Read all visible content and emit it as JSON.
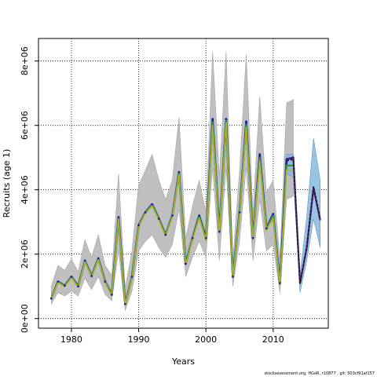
{
  "chart_data": {
    "type": "line",
    "title": "",
    "xlabel": "Years",
    "ylabel": "Recruits (age 1)",
    "xlim": [
      1975.1,
      2018.2
    ],
    "ylim": [
      -300000,
      8700000
    ],
    "x_ticks": [
      1980,
      1990,
      2000,
      2010
    ],
    "x_tick_labels": [
      "1980",
      "1990",
      "2000",
      "2010"
    ],
    "y_ticks": [
      0,
      2000000,
      4000000,
      6000000,
      8000000
    ],
    "y_tick_labels": [
      "0e+00",
      "2e+06",
      "4e+06",
      "6e+06",
      "8e+06"
    ],
    "grid": true,
    "grid_style": "dotted",
    "colors": {
      "band": "#bfbfbf",
      "band_edge": "#a6a6a6",
      "assessment_blue": "#1a1aa8",
      "assessment_green": "#2e9a3c",
      "assessment_olive": "#b0b02a",
      "recent_band": "#87b9de",
      "recent_purple": "#5b1b86",
      "recent_dashed": "#222222",
      "grid": "#000000"
    },
    "years": [
      1977,
      1978,
      1979,
      1980,
      1981,
      1982,
      1983,
      1984,
      1985,
      1986,
      1987,
      1988,
      1989,
      1990,
      1991,
      1992,
      1993,
      1994,
      1995,
      1996,
      1997,
      1998,
      1999,
      2000,
      2001,
      2002,
      2003,
      2004,
      2005,
      2006,
      2007,
      2008,
      2009,
      2010,
      2011,
      2012,
      2013
    ],
    "band_upper": [
      1000000,
      1650000,
      1500000,
      1850000,
      1450000,
      2450000,
      1900000,
      2600000,
      1650000,
      1350000,
      4500000,
      950000,
      2100000,
      4150000,
      4600000,
      5100000,
      4300000,
      3700000,
      4300000,
      6250000,
      2500000,
      3500000,
      4300000,
      3300000,
      8300000,
      4400000,
      8300000,
      1800000,
      4600000,
      8200000,
      3300000,
      6900000,
      3900000,
      4300000,
      1850000,
      6700000,
      6800000
    ],
    "band_lower": [
      450000,
      800000,
      700000,
      850000,
      700000,
      1250000,
      900000,
      1300000,
      750000,
      550000,
      2100000,
      250000,
      850000,
      2100000,
      2400000,
      2600000,
      2200000,
      1900000,
      2300000,
      3400000,
      1300000,
      1900000,
      2400000,
      1900000,
      4700000,
      1800000,
      4700000,
      1000000,
      2400000,
      4700000,
      1800000,
      3700000,
      2100000,
      2300000,
      800000,
      3700000,
      3800000
    ],
    "series": [
      {
        "name": "",
        "values": [
          620000,
          1150000,
          1020000,
          1300000,
          1000000,
          1800000,
          1320000,
          1870000,
          1150000,
          740000,
          3150000,
          450000,
          1300000,
          2900000,
          3300000,
          3550000,
          3100000,
          2600000,
          3200000,
          4550000,
          1700000,
          2500000,
          3200000,
          2500000,
          6200000,
          2700000,
          6200000,
          1300000,
          3300000,
          6120000,
          2500000,
          5100000,
          2800000,
          3250000,
          1100000,
          4950000,
          5000000
        ]
      },
      {
        "name": "",
        "values": [
          620000,
          1140000,
          1010000,
          1290000,
          990000,
          1790000,
          1310000,
          1860000,
          1140000,
          730000,
          3130000,
          440000,
          1290000,
          2890000,
          3290000,
          3540000,
          3090000,
          2590000,
          3190000,
          4530000,
          1690000,
          2490000,
          3170000,
          2470000,
          6100000,
          2690000,
          6150000,
          1290000,
          3280000,
          6030000,
          2480000,
          5000000,
          2780000,
          3200000,
          1080000,
          4750000,
          4750000
        ]
      },
      {
        "name": "",
        "values": [
          600000,
          1120000,
          990000,
          1270000,
          970000,
          1770000,
          1290000,
          1840000,
          1120000,
          710000,
          3080000,
          420000,
          1270000,
          2860000,
          3260000,
          3500000,
          3050000,
          2560000,
          3150000,
          4480000,
          1660000,
          2450000,
          3120000,
          2420000,
          6000000,
          2650000,
          6080000,
          1270000,
          3230000,
          5950000,
          2440000,
          4900000,
          2740000,
          3120000,
          1040000,
          4620000,
          4580000
        ]
      }
    ],
    "recent": {
      "years": [
        2012,
        2013,
        2014,
        2015,
        2016,
        2017
      ],
      "band_upper": [
        5100000,
        5100000,
        1350000,
        3200000,
        5600000,
        4300000
      ],
      "band_lower": [
        4500000,
        4400000,
        800000,
        1800000,
        3100000,
        2200000
      ],
      "series": [
        {
          "name": "",
          "values": [
            4950000,
            5000000,
            1100000,
            2200000,
            4050000,
            3050000
          ]
        },
        {
          "name": "",
          "values": [
            4900000,
            4950000,
            1080000,
            2250000,
            4100000,
            3080000
          ]
        }
      ]
    }
  },
  "footer": "stockassessment.org, HGoR, r10877 , git: 503cf91af157"
}
